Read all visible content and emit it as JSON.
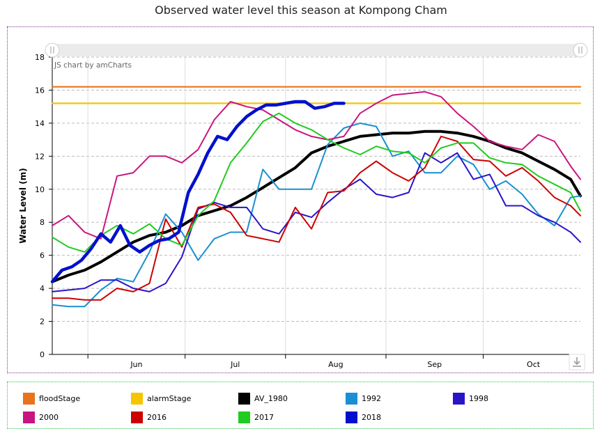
{
  "title": "Observed water level this season at Kompong Cham",
  "credit": "JS chart by amCharts",
  "chart_data": {
    "type": "line",
    "title": "Observed water level this season at Kompong Cham",
    "ylabel": "Water Level (m)",
    "xlabel": "",
    "ylim": [
      0,
      18
    ],
    "yticks": [
      0,
      2,
      4,
      6,
      8,
      10,
      12,
      14,
      16,
      18
    ],
    "xlim": [
      "May 21",
      "Oct 31"
    ],
    "x_tick_labels": [
      "Jun",
      "Jul",
      "Aug",
      "Sep",
      "Oct"
    ],
    "x_month_boundaries": [
      "Jun 1",
      "Jul 1",
      "Aug 1",
      "Sep 1",
      "Oct 1"
    ],
    "grid": true,
    "legend_position": "bottom",
    "series": [
      {
        "name": "floodStage",
        "color": "#e8731c",
        "width": 2.2,
        "x": [
          "May 21",
          "Oct 31"
        ],
        "y": [
          16.2,
          16.2
        ]
      },
      {
        "name": "alarmStage",
        "color": "#f7c400",
        "width": 2.2,
        "x": [
          "May 21",
          "Oct 31"
        ],
        "y": [
          15.2,
          15.2
        ]
      },
      {
        "name": "AV_1980",
        "color": "#000000",
        "width": 4,
        "x": [
          "May 21",
          "May 26",
          "May 31",
          "Jun 5",
          "Jun 10",
          "Jun 15",
          "Jun 20",
          "Jun 25",
          "Jun 30",
          "Jul 5",
          "Jul 10",
          "Jul 15",
          "Jul 20",
          "Jul 25",
          "Jul 30",
          "Aug 4",
          "Aug 9",
          "Aug 14",
          "Aug 19",
          "Aug 24",
          "Aug 29",
          "Sep 3",
          "Sep 8",
          "Sep 13",
          "Sep 18",
          "Sep 23",
          "Sep 28",
          "Oct 3",
          "Oct 8",
          "Oct 13",
          "Oct 18",
          "Oct 23",
          "Oct 28",
          "Oct 31"
        ],
        "y": [
          4.4,
          4.8,
          5.1,
          5.6,
          6.2,
          6.8,
          7.2,
          7.4,
          7.8,
          8.4,
          8.7,
          9.0,
          9.5,
          10.1,
          10.7,
          11.3,
          12.2,
          12.6,
          12.9,
          13.2,
          13.3,
          13.4,
          13.4,
          13.5,
          13.5,
          13.4,
          13.2,
          12.9,
          12.5,
          12.2,
          11.7,
          11.2,
          10.6,
          9.6
        ]
      },
      {
        "name": "1992",
        "color": "#1a8fd1",
        "width": 2,
        "x": [
          "May 21",
          "May 26",
          "May 31",
          "Jun 5",
          "Jun 10",
          "Jun 15",
          "Jun 20",
          "Jun 25",
          "Jun 30",
          "Jul 5",
          "Jul 10",
          "Jul 15",
          "Jul 20",
          "Jul 25",
          "Jul 30",
          "Aug 4",
          "Aug 9",
          "Aug 14",
          "Aug 19",
          "Aug 24",
          "Aug 29",
          "Sep 3",
          "Sep 8",
          "Sep 13",
          "Sep 18",
          "Sep 23",
          "Sep 28",
          "Oct 3",
          "Oct 8",
          "Oct 13",
          "Oct 18",
          "Oct 23",
          "Oct 28",
          "Oct 31"
        ],
        "y": [
          3.0,
          2.9,
          2.9,
          3.9,
          4.6,
          4.4,
          6.2,
          8.5,
          7.4,
          5.7,
          7.0,
          7.4,
          7.4,
          11.2,
          10.0,
          10.0,
          10.0,
          12.7,
          13.7,
          14.0,
          13.8,
          12.0,
          12.3,
          11.0,
          11.0,
          12.0,
          11.5,
          10.0,
          10.5,
          9.7,
          8.5,
          7.8,
          9.5,
          9.6
        ]
      },
      {
        "name": "1998",
        "color": "#2a14c8",
        "width": 2,
        "x": [
          "May 21",
          "May 26",
          "May 31",
          "Jun 5",
          "Jun 10",
          "Jun 15",
          "Jun 20",
          "Jun 25",
          "Jun 30",
          "Jul 5",
          "Jul 10",
          "Jul 15",
          "Jul 20",
          "Jul 25",
          "Jul 30",
          "Aug 4",
          "Aug 9",
          "Aug 14",
          "Aug 19",
          "Aug 24",
          "Aug 29",
          "Sep 3",
          "Sep 8",
          "Sep 13",
          "Sep 18",
          "Sep 23",
          "Sep 28",
          "Oct 3",
          "Oct 8",
          "Oct 13",
          "Oct 18",
          "Oct 23",
          "Oct 28",
          "Oct 31"
        ],
        "y": [
          3.8,
          3.9,
          4.0,
          4.5,
          4.5,
          4.0,
          3.8,
          4.3,
          5.9,
          8.8,
          9.2,
          8.9,
          8.9,
          7.6,
          7.3,
          8.6,
          8.3,
          9.2,
          10.0,
          10.6,
          9.7,
          9.5,
          9.8,
          12.2,
          11.6,
          12.2,
          10.6,
          10.9,
          9.0,
          9.0,
          8.4,
          8.0,
          7.4,
          6.8
        ]
      },
      {
        "name": "2000",
        "color": "#c9157f",
        "width": 2,
        "x": [
          "May 21",
          "May 26",
          "May 31",
          "Jun 5",
          "Jun 10",
          "Jun 15",
          "Jun 20",
          "Jun 25",
          "Jun 30",
          "Jul 5",
          "Jul 10",
          "Jul 15",
          "Jul 20",
          "Jul 25",
          "Jul 30",
          "Aug 4",
          "Aug 9",
          "Aug 14",
          "Aug 19",
          "Aug 24",
          "Aug 29",
          "Sep 3",
          "Sep 8",
          "Sep 13",
          "Sep 18",
          "Sep 23",
          "Sep 28",
          "Oct 3",
          "Oct 8",
          "Oct 13",
          "Oct 18",
          "Oct 23",
          "Oct 28",
          "Oct 31"
        ],
        "y": [
          7.8,
          8.4,
          7.4,
          7.0,
          10.8,
          11.0,
          12.0,
          12.0,
          11.6,
          12.4,
          14.2,
          15.3,
          15.0,
          14.8,
          14.2,
          13.6,
          13.2,
          13.0,
          13.2,
          14.6,
          15.2,
          15.7,
          15.8,
          15.9,
          15.6,
          14.6,
          13.8,
          12.9,
          12.6,
          12.4,
          13.3,
          12.9,
          11.4,
          10.6
        ]
      },
      {
        "name": "2016",
        "color": "#cc0000",
        "width": 2,
        "x": [
          "May 21",
          "May 26",
          "May 31",
          "Jun 5",
          "Jun 10",
          "Jun 15",
          "Jun 20",
          "Jun 25",
          "Jun 30",
          "Jul 5",
          "Jul 10",
          "Jul 15",
          "Jul 20",
          "Jul 25",
          "Jul 30",
          "Aug 4",
          "Aug 9",
          "Aug 14",
          "Aug 19",
          "Aug 24",
          "Aug 29",
          "Sep 3",
          "Sep 8",
          "Sep 13",
          "Sep 18",
          "Sep 23",
          "Sep 28",
          "Oct 3",
          "Oct 8",
          "Oct 13",
          "Oct 18",
          "Oct 23",
          "Oct 28",
          "Oct 31"
        ],
        "y": [
          3.4,
          3.4,
          3.3,
          3.3,
          4.0,
          3.8,
          4.3,
          8.2,
          6.5,
          8.9,
          9.1,
          8.6,
          7.2,
          7.0,
          6.8,
          8.9,
          7.6,
          9.8,
          9.9,
          11.0,
          11.7,
          11.0,
          10.5,
          11.3,
          13.2,
          12.9,
          11.8,
          11.7,
          10.8,
          11.3,
          10.5,
          9.5,
          9.0,
          8.4
        ]
      },
      {
        "name": "2017",
        "color": "#1fcc1f",
        "width": 2,
        "x": [
          "May 21",
          "May 26",
          "May 31",
          "Jun 5",
          "Jun 10",
          "Jun 15",
          "Jun 20",
          "Jun 25",
          "Jun 30",
          "Jul 5",
          "Jul 10",
          "Jul 15",
          "Jul 20",
          "Jul 25",
          "Jul 30",
          "Aug 4",
          "Aug 9",
          "Aug 14",
          "Aug 19",
          "Aug 24",
          "Aug 29",
          "Sep 3",
          "Sep 8",
          "Sep 13",
          "Sep 18",
          "Sep 23",
          "Sep 28",
          "Oct 3",
          "Oct 8",
          "Oct 13",
          "Oct 18",
          "Oct 23",
          "Oct 28",
          "Oct 31"
        ],
        "y": [
          7.1,
          6.5,
          6.2,
          7.2,
          7.8,
          7.3,
          7.9,
          7.0,
          6.6,
          8.4,
          9.3,
          11.6,
          12.8,
          14.1,
          14.6,
          14.0,
          13.6,
          13.0,
          12.5,
          12.1,
          12.6,
          12.3,
          12.2,
          11.6,
          12.5,
          12.8,
          12.8,
          11.9,
          11.6,
          11.5,
          10.8,
          10.3,
          9.8,
          8.7
        ]
      },
      {
        "name": "2018",
        "color": "#0010cc",
        "width": 4.5,
        "x": [
          "May 21",
          "May 24",
          "May 27",
          "May 30",
          "Jun 2",
          "Jun 5",
          "Jun 8",
          "Jun 11",
          "Jun 14",
          "Jun 17",
          "Jun 20",
          "Jun 23",
          "Jun 26",
          "Jun 29",
          "Jul 2",
          "Jul 5",
          "Jul 8",
          "Jul 11",
          "Jul 14",
          "Jul 17",
          "Jul 20",
          "Jul 23",
          "Jul 26",
          "Jul 29",
          "Aug 1",
          "Aug 4",
          "Aug 7",
          "Aug 10",
          "Aug 13",
          "Aug 16",
          "Aug 19"
        ],
        "y": [
          4.4,
          5.1,
          5.3,
          5.7,
          6.4,
          7.3,
          6.8,
          7.8,
          6.6,
          6.2,
          6.6,
          6.9,
          7.0,
          7.4,
          9.8,
          10.9,
          12.2,
          13.2,
          13.0,
          13.8,
          14.4,
          14.8,
          15.1,
          15.1,
          15.2,
          15.3,
          15.3,
          14.9,
          15.0,
          15.2,
          15.2
        ]
      }
    ]
  },
  "legend": {
    "items": [
      {
        "label": "floodStage",
        "color": "#e8731c"
      },
      {
        "label": "alarmStage",
        "color": "#f7c400"
      },
      {
        "label": "AV_1980",
        "color": "#000000"
      },
      {
        "label": "1992",
        "color": "#1a8fd1"
      },
      {
        "label": "1998",
        "color": "#2a14c8"
      },
      {
        "label": "2000",
        "color": "#c9157f"
      },
      {
        "label": "2016",
        "color": "#cc0000"
      },
      {
        "label": "2017",
        "color": "#1fcc1f"
      },
      {
        "label": "2018",
        "color": "#0010cc"
      }
    ]
  }
}
